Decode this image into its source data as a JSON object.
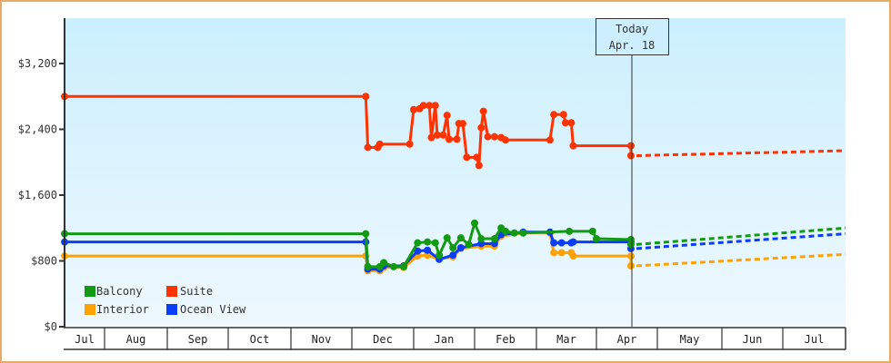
{
  "chart_data": {
    "type": "line",
    "title": "",
    "xlabel": "",
    "ylabel": "",
    "ylim": [
      0,
      3750
    ],
    "yticks": [
      {
        "value": 0,
        "label": "$0"
      },
      {
        "value": 800,
        "label": "$800"
      },
      {
        "value": 1600,
        "label": "$1,600"
      },
      {
        "value": 2400,
        "label": "$2,400"
      },
      {
        "value": 3200,
        "label": "$3,200"
      }
    ],
    "months": [
      "Jul",
      "Aug",
      "Sep",
      "Oct",
      "Nov",
      "Dec",
      "Jan",
      "Feb",
      "Mar",
      "Apr",
      "May",
      "Jun",
      "Jul"
    ],
    "grid": false,
    "legend_position": "lower-left inside",
    "today_marker": {
      "line1": "Today",
      "line2": "Apr. 18"
    },
    "series": [
      {
        "name": "Balcony",
        "color": "#129b12",
        "points": [
          [
            "Jul 1",
            1130
          ],
          [
            "Dec 8",
            1130
          ],
          [
            "Dec 9",
            730
          ],
          [
            "Dec 15",
            730
          ],
          [
            "Dec 17",
            780
          ],
          [
            "Dec 22",
            730
          ],
          [
            "Dec 27",
            730
          ],
          [
            "Jan 3",
            1020
          ],
          [
            "Jan 8",
            1030
          ],
          [
            "Jan 12",
            1020
          ],
          [
            "Jan 14",
            870
          ],
          [
            "Jan 18",
            1080
          ],
          [
            "Jan 21",
            960
          ],
          [
            "Jan 25",
            1080
          ],
          [
            "Jan 29",
            1000
          ],
          [
            "Feb 1",
            1260
          ],
          [
            "Feb 4",
            1070
          ],
          [
            "Feb 10",
            1070
          ],
          [
            "Feb 13",
            1200
          ],
          [
            "Feb 15",
            1160
          ],
          [
            "Feb 19",
            1140
          ],
          [
            "Feb 23",
            1140
          ],
          [
            "Mar 18",
            1160
          ],
          [
            "Mar 30",
            1160
          ],
          [
            "Apr 1",
            1070
          ],
          [
            "Apr 18",
            1060
          ],
          [
            "Apr 18",
            1000
          ]
        ],
        "forecast": [
          [
            "Apr 18",
            1000
          ],
          [
            "Jul 31",
            1200
          ]
        ]
      },
      {
        "name": "Suite",
        "color": "#ff3300",
        "points": [
          [
            "Jul 1",
            2800
          ],
          [
            "Dec 8",
            2800
          ],
          [
            "Dec 9",
            2180
          ],
          [
            "Dec 14",
            2180
          ],
          [
            "Dec 15",
            2220
          ],
          [
            "Dec 30",
            2220
          ],
          [
            "Jan 1",
            2640
          ],
          [
            "Jan 4",
            2650
          ],
          [
            "Jan 6",
            2690
          ],
          [
            "Jan 9",
            2690
          ],
          [
            "Jan 10",
            2300
          ],
          [
            "Jan 12",
            2690
          ],
          [
            "Jan 13",
            2330
          ],
          [
            "Jan 16",
            2330
          ],
          [
            "Jan 18",
            2570
          ],
          [
            "Jan 19",
            2280
          ],
          [
            "Jan 23",
            2280
          ],
          [
            "Jan 24",
            2470
          ],
          [
            "Jan 26",
            2470
          ],
          [
            "Jan 28",
            2060
          ],
          [
            "Feb 2",
            2060
          ],
          [
            "Feb 3",
            1960
          ],
          [
            "Feb 4",
            2420
          ],
          [
            "Feb 5",
            2620
          ],
          [
            "Feb 7",
            2310
          ],
          [
            "Feb 10",
            2310
          ],
          [
            "Feb 13",
            2300
          ],
          [
            "Feb 15",
            2270
          ],
          [
            "Mar 8",
            2270
          ],
          [
            "Mar 10",
            2580
          ],
          [
            "Mar 15",
            2580
          ],
          [
            "Mar 16",
            2480
          ],
          [
            "Mar 19",
            2480
          ],
          [
            "Mar 20",
            2200
          ],
          [
            "Apr 18",
            2200
          ],
          [
            "Apr 18",
            2080
          ]
        ],
        "forecast": [
          [
            "Apr 18",
            2080
          ],
          [
            "Jul 31",
            2140
          ]
        ]
      },
      {
        "name": "Interior",
        "color": "#ffa200",
        "points": [
          [
            "Jul 1",
            860
          ],
          [
            "Dec 8",
            860
          ],
          [
            "Dec 9",
            680
          ],
          [
            "Dec 15",
            680
          ],
          [
            "Dec 17",
            720
          ],
          [
            "Dec 27",
            720
          ],
          [
            "Jan 3",
            860
          ],
          [
            "Jan 8",
            870
          ],
          [
            "Jan 14",
            820
          ],
          [
            "Jan 21",
            850
          ],
          [
            "Jan 25",
            950
          ],
          [
            "Feb 4",
            980
          ],
          [
            "Feb 10",
            980
          ],
          [
            "Feb 13",
            1100
          ],
          [
            "Feb 23",
            1140
          ],
          [
            "Mar 8",
            1140
          ],
          [
            "Mar 10",
            900
          ],
          [
            "Mar 14",
            900
          ],
          [
            "Mar 19",
            900
          ],
          [
            "Mar 20",
            860
          ],
          [
            "Apr 18",
            860
          ],
          [
            "Apr 18",
            740
          ]
        ],
        "forecast": [
          [
            "Apr 18",
            740
          ],
          [
            "Jul 31",
            880
          ]
        ]
      },
      {
        "name": "Ocean View",
        "color": "#0a3dfa",
        "points": [
          [
            "Jul 1",
            1030
          ],
          [
            "Dec 8",
            1030
          ],
          [
            "Dec 9",
            700
          ],
          [
            "Dec 15",
            700
          ],
          [
            "Dec 17",
            740
          ],
          [
            "Dec 27",
            740
          ],
          [
            "Jan 3",
            920
          ],
          [
            "Jan 8",
            930
          ],
          [
            "Jan 14",
            820
          ],
          [
            "Jan 21",
            870
          ],
          [
            "Jan 25",
            960
          ],
          [
            "Feb 4",
            1010
          ],
          [
            "Feb 10",
            1010
          ],
          [
            "Feb 13",
            1120
          ],
          [
            "Feb 23",
            1150
          ],
          [
            "Mar 8",
            1150
          ],
          [
            "Mar 10",
            1020
          ],
          [
            "Mar 14",
            1020
          ],
          [
            "Mar 19",
            1020
          ],
          [
            "Mar 20",
            1030
          ],
          [
            "Apr 18",
            1030
          ],
          [
            "Apr 18",
            950
          ]
        ],
        "forecast": [
          [
            "Apr 18",
            950
          ],
          [
            "Jul 31",
            1130
          ]
        ]
      }
    ]
  },
  "legend": [
    {
      "label": "Balcony",
      "color": "#129b12"
    },
    {
      "label": "Suite",
      "color": "#ff3300"
    },
    {
      "label": "Interior",
      "color": "#ffa200"
    },
    {
      "label": "Ocean View",
      "color": "#0a3dfa"
    }
  ],
  "today": {
    "line1": "Today",
    "line2": "Apr. 18"
  },
  "y_axis": [
    "$0",
    "$800",
    "$1,600",
    "$2,400",
    "$3,200"
  ],
  "x_axis": [
    "Jul",
    "Aug",
    "Sep",
    "Oct",
    "Nov",
    "Dec",
    "Jan",
    "Feb",
    "Mar",
    "Apr",
    "May",
    "Jun",
    "Jul"
  ]
}
